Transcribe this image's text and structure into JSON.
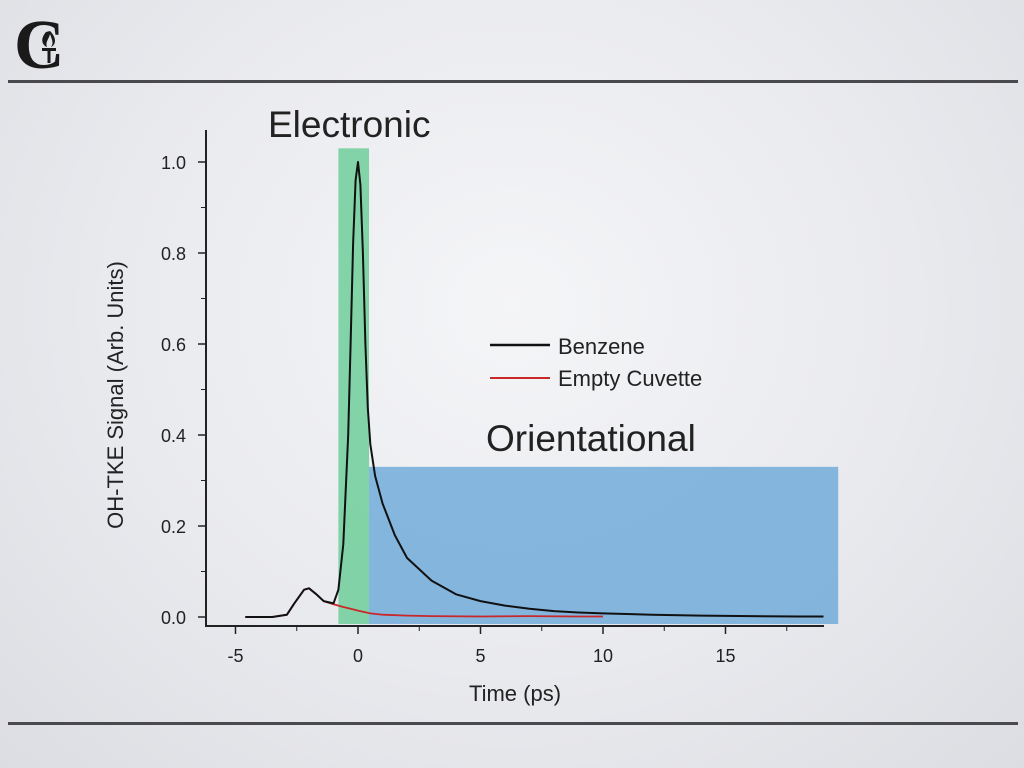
{
  "logo": {
    "letter": "C",
    "icon": "torch-icon"
  },
  "colors": {
    "electronic_band": "#5ec98e",
    "orientational_band": "#6aa8d8",
    "benzene": "#111111",
    "empty_cuvette": "#c8282a",
    "rule": "#4a4a4e"
  },
  "chart_data": {
    "type": "line",
    "title": "",
    "xlabel": "Time (ps)",
    "ylabel": "OH-TKE Signal (Arb. Units)",
    "xlim": [
      -5,
      19
    ],
    "ylim": [
      0,
      1.0
    ],
    "x_ticks": [
      -5,
      0,
      5,
      10,
      15
    ],
    "x_tick_labels": [
      "-5",
      "0",
      "5",
      "10",
      "15"
    ],
    "y_ticks": [
      0.0,
      0.2,
      0.4,
      0.6,
      0.8,
      1.0
    ],
    "y_tick_labels": [
      "0.0",
      "0.2",
      "0.4",
      "0.6",
      "0.8",
      "1.0"
    ],
    "grid": false,
    "legend_position": "right",
    "series": [
      {
        "name": "Benzene",
        "color": "#111111",
        "x": [
          -4.6,
          -3.5,
          -2.9,
          -2.6,
          -2.2,
          -2.0,
          -1.7,
          -1.4,
          -1.0,
          -0.8,
          -0.6,
          -0.4,
          -0.3,
          -0.2,
          -0.1,
          0.0,
          0.1,
          0.2,
          0.3,
          0.4,
          0.5,
          0.7,
          1.0,
          1.5,
          2.0,
          3.0,
          4.0,
          5.0,
          6.0,
          7.0,
          8.0,
          9.0,
          10.0,
          12.0,
          14.0,
          16.0,
          18.0,
          19.0
        ],
        "y": [
          0.0,
          0.0,
          0.005,
          0.03,
          0.06,
          0.063,
          0.05,
          0.035,
          0.03,
          0.06,
          0.16,
          0.4,
          0.6,
          0.82,
          0.96,
          1.0,
          0.95,
          0.8,
          0.6,
          0.46,
          0.38,
          0.31,
          0.25,
          0.18,
          0.13,
          0.08,
          0.05,
          0.035,
          0.025,
          0.018,
          0.013,
          0.01,
          0.008,
          0.005,
          0.003,
          0.002,
          0.001,
          0.001
        ]
      },
      {
        "name": "Empty Cuvette",
        "color": "#c8282a",
        "x": [
          -4.6,
          -3.5,
          -2.9,
          -2.6,
          -2.2,
          -2.0,
          -1.7,
          -1.4,
          -1.0,
          -0.6,
          -0.3,
          0.0,
          0.5,
          1.0,
          2.0,
          3.0,
          5.0,
          7.0,
          9.0,
          10.0
        ],
        "y": [
          0.0,
          0.0,
          0.005,
          0.03,
          0.06,
          0.063,
          0.05,
          0.035,
          0.028,
          0.022,
          0.018,
          0.014,
          0.008,
          0.005,
          0.003,
          0.002,
          0.001,
          0.002,
          0.001,
          0.001
        ]
      }
    ],
    "annotations": [
      {
        "text": "Electronic",
        "x_range": [
          -0.8,
          0.45
        ],
        "y_top": 1.03
      },
      {
        "text": "Orientational",
        "x_range": [
          0.45,
          19.6
        ],
        "y_top": 0.33
      }
    ]
  }
}
